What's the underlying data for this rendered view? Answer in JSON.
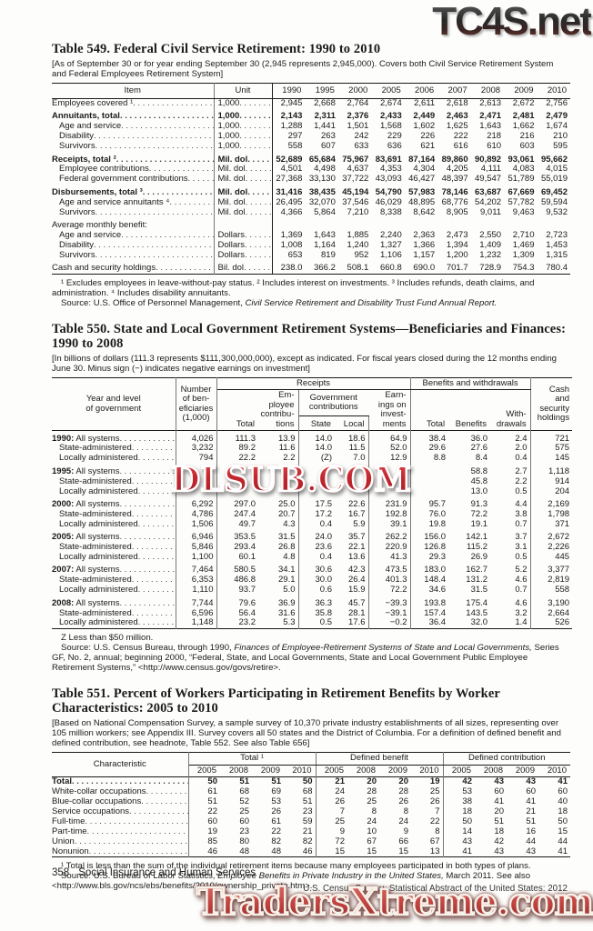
{
  "watermarks": {
    "top": "TC4S.net",
    "middle": "DLSUB.COM",
    "bottom": "TradersXtreme.com",
    "red": "#c3272e"
  },
  "table549": {
    "title": "Table 549. Federal Civil Service Retirement: 1990 to 2010",
    "note": "[As of September 30 or for year ending September 30 (2,945 represents 2,945,000). Covers both Civil Service Retirement System and Federal Employees Retirement System]",
    "header": {
      "item": "Item",
      "unit": "Unit"
    },
    "years": [
      "1990",
      "1995",
      "2000",
      "2005",
      "2006",
      "2007",
      "2008",
      "2009",
      "2010"
    ],
    "rows": [
      {
        "label": "Employees covered ¹",
        "unit": "1,000",
        "values": [
          "2,945",
          "2,668",
          "2,764",
          "2,674",
          "2,611",
          "2,618",
          "2,613",
          "2,672",
          "2,756"
        ]
      },
      {
        "label": "Annuitants, total",
        "unit": "1,000",
        "bold": true,
        "gap": true,
        "values": [
          "2,143",
          "2,311",
          "2,376",
          "2,433",
          "2,449",
          "2,463",
          "2,471",
          "2,481",
          "2,479"
        ]
      },
      {
        "label": "Age and service",
        "unit": "1,000",
        "indent": 1,
        "values": [
          "1,288",
          "1,441",
          "1,501",
          "1,568",
          "1,602",
          "1,625",
          "1,643",
          "1,662",
          "1,674"
        ]
      },
      {
        "label": "Disability",
        "unit": "1,000",
        "indent": 1,
        "values": [
          "297",
          "263",
          "242",
          "229",
          "226",
          "222",
          "218",
          "216",
          "210"
        ]
      },
      {
        "label": "Survivors",
        "unit": "1,000",
        "indent": 1,
        "values": [
          "558",
          "607",
          "633",
          "636",
          "621",
          "616",
          "610",
          "603",
          "595"
        ]
      },
      {
        "label": "Receipts, total ²",
        "unit": "Mil. dol",
        "bold": true,
        "gap": true,
        "values": [
          "52,689",
          "65,684",
          "75,967",
          "83,691",
          "87,164",
          "89,860",
          "90,892",
          "93,061",
          "95,662"
        ]
      },
      {
        "label": "Employee contributions",
        "unit": "Mil. dol",
        "indent": 1,
        "values": [
          "4,501",
          "4,498",
          "4,637",
          "4,353",
          "4,304",
          "4,205",
          "4,111",
          "4,083",
          "4,015"
        ]
      },
      {
        "label": "Federal government contributions",
        "unit": "Mil. dol",
        "indent": 1,
        "values": [
          "27,368",
          "33,130",
          "37,722",
          "43,093",
          "46,427",
          "48,397",
          "49,547",
          "51,789",
          "55,019"
        ]
      },
      {
        "label": "Disbursements, total ³",
        "unit": "Mil. dol",
        "bold": true,
        "gap": true,
        "values": [
          "31,416",
          "38,435",
          "45,194",
          "54,790",
          "57,983",
          "78,146",
          "63,687",
          "67,669",
          "69,452"
        ]
      },
      {
        "label": "Age and service annuitants ⁴",
        "unit": "Mil. dol",
        "indent": 1,
        "values": [
          "26,495",
          "32,070",
          "37,546",
          "46,029",
          "48,895",
          "68,776",
          "54,202",
          "57,782",
          "59,594"
        ]
      },
      {
        "label": "Survivors",
        "unit": "Mil. dol",
        "indent": 1,
        "values": [
          "4,366",
          "5,864",
          "7,210",
          "8,338",
          "8,642",
          "8,905",
          "9,011",
          "9,463",
          "9,532"
        ]
      },
      {
        "label": "Average monthly benefit:",
        "subheader": true,
        "gap": true,
        "values": [
          "",
          "",
          "",
          "",
          "",
          "",
          "",
          "",
          ""
        ]
      },
      {
        "label": "Age and service",
        "unit": "Dollars",
        "indent": 1,
        "values": [
          "1,369",
          "1,643",
          "1,885",
          "2,240",
          "2,363",
          "2,473",
          "2,550",
          "2,710",
          "2,723"
        ]
      },
      {
        "label": "Disability",
        "unit": "Dollars",
        "indent": 1,
        "values": [
          "1,008",
          "1,164",
          "1,240",
          "1,327",
          "1,366",
          "1,394",
          "1,409",
          "1,469",
          "1,453"
        ]
      },
      {
        "label": "Survivors",
        "unit": "Dollars",
        "indent": 1,
        "values": [
          "653",
          "819",
          "952",
          "1,106",
          "1,157",
          "1,200",
          "1,232",
          "1,309",
          "1,315"
        ]
      },
      {
        "label": "Cash and security holdings",
        "unit": "Bil. dol",
        "gap": true,
        "values": [
          "238.0",
          "366.2",
          "508.1",
          "660.8",
          "690.0",
          "701.7",
          "728.9",
          "754.3",
          "780.4"
        ]
      }
    ],
    "footnote": "¹ Excludes employees in leave-without-pay status. ² Includes interest on investments. ³ Includes refunds, death claims, and administration. ⁴ Includes disability annuitants.",
    "source_segments": [
      {
        "text": "Source: U.S. Office of Personnel Management, "
      },
      {
        "text": "Civil Service Retirement and Disability Trust Fund Annual Report.",
        "italic": true
      }
    ]
  },
  "table550": {
    "title": "Table 550. State and Local Government Retirement Systems—Beneficiaries and Finances: 1990 to 2008",
    "note": "[In billions of dollars (111.3 represents $111,300,000,000), except as indicated. For fiscal years closed during the 12 months ending June 30. Minus sign (−) indicates negative earnings on investment]",
    "header": {
      "year_level": "Year and level\nof government",
      "number": "Number\nof ben-\neficiaries\n(1,000)",
      "receipts": "Receipts",
      "benefits_group": "Benefits and withdrawals",
      "cash": "Cash\nand\nsecurity\nholdings",
      "r_total": "Total",
      "employee": "Em-\nployee\ncontribu-\ntions",
      "govt": "Government\ncontributions",
      "state": "State",
      "local": "Local",
      "earnings": "Earn-\nings on\ninvest-\nments",
      "b_total": "Total",
      "benefits": "Benefits",
      "withdrawals": "With-\ndrawals"
    },
    "rows": [
      {
        "prefix": "1990:",
        "label": " All systems",
        "gap": true,
        "values": [
          "4,026",
          "111.3",
          "13.9",
          "14.0",
          "18.6",
          "64.9",
          "38.4",
          "36.0",
          "2.4",
          "721"
        ]
      },
      {
        "label": "State-administered",
        "indent": 1,
        "values": [
          "3,232",
          "89.2",
          "11.6",
          "14.0",
          "11.5",
          "52.0",
          "29.6",
          "27.6",
          "2.0",
          "575"
        ]
      },
      {
        "label": "Locally administered",
        "indent": 1,
        "values": [
          "794",
          "22.2",
          "2.2",
          "(Z)",
          "7.0",
          "12.9",
          "8.8",
          "8.4",
          "0.4",
          "145"
        ]
      },
      {
        "prefix": "1995:",
        "label": " All systems",
        "gap": true,
        "covered": true,
        "values": [
          "",
          "",
          "",
          "",
          "",
          "",
          "",
          "58.8",
          "2.7",
          "1,118"
        ]
      },
      {
        "label": "State-administered",
        "indent": 1,
        "covered": true,
        "values": [
          "",
          "",
          "",
          "",
          "",
          "",
          "",
          "45.8",
          "2.2",
          "914"
        ]
      },
      {
        "label": "Locally administered",
        "indent": 1,
        "covered": true,
        "values": [
          "",
          "",
          "",
          "",
          "",
          "",
          "",
          "13.0",
          "0.5",
          "204"
        ]
      },
      {
        "prefix": "2000:",
        "label": " All systems",
        "gap": true,
        "values": [
          "6,292",
          "297.0",
          "25.0",
          "17.5",
          "22.6",
          "231.9",
          "95.7",
          "91.3",
          "4.4",
          "2,169"
        ]
      },
      {
        "label": "State-administered",
        "indent": 1,
        "values": [
          "4,786",
          "247.4",
          "20.7",
          "17.2",
          "16.7",
          "192.8",
          "76.0",
          "72.2",
          "3.8",
          "1,798"
        ]
      },
      {
        "label": "Locally administered",
        "indent": 1,
        "values": [
          "1,506",
          "49.7",
          "4.3",
          "0.4",
          "5.9",
          "39.1",
          "19.8",
          "19.1",
          "0.7",
          "371"
        ]
      },
      {
        "prefix": "2005:",
        "label": " All systems",
        "gap": true,
        "values": [
          "6,946",
          "353.5",
          "31.5",
          "24.0",
          "35.7",
          "262.2",
          "156.0",
          "142.1",
          "3.7",
          "2,672"
        ]
      },
      {
        "label": "State-administered",
        "indent": 1,
        "values": [
          "5,846",
          "293.4",
          "26.8",
          "23.6",
          "22.1",
          "220.9",
          "126.8",
          "115.2",
          "3.1",
          "2,226"
        ]
      },
      {
        "label": "Locally administered",
        "indent": 1,
        "values": [
          "1,100",
          "60.1",
          "4.8",
          "0.4",
          "13.6",
          "41.3",
          "29.3",
          "26.9",
          "0.5",
          "445"
        ]
      },
      {
        "prefix": "2007:",
        "label": " All systems",
        "gap": true,
        "values": [
          "7,464",
          "580.5",
          "34.1",
          "30.6",
          "42.3",
          "473.5",
          "183.0",
          "162.7",
          "5.2",
          "3,377"
        ]
      },
      {
        "label": "State-administered",
        "indent": 1,
        "values": [
          "6,353",
          "486.8",
          "29.1",
          "30.0",
          "26.4",
          "401.3",
          "148.4",
          "131.2",
          "4.6",
          "2,819"
        ]
      },
      {
        "label": "Locally administered",
        "indent": 1,
        "values": [
          "1,110",
          "93.7",
          "5.0",
          "0.6",
          "15.9",
          "72.2",
          "34.6",
          "31.5",
          "0.7",
          "558"
        ]
      },
      {
        "prefix": "2008:",
        "label": " All systems",
        "gap": true,
        "values": [
          "7,744",
          "79.6",
          "36.9",
          "36.3",
          "45.7",
          "−39.3",
          "193.8",
          "175.4",
          "4.6",
          "3,190"
        ]
      },
      {
        "label": "State-administered",
        "indent": 1,
        "values": [
          "6,596",
          "56.4",
          "31.6",
          "35.8",
          "28.1",
          "−39.1",
          "157.4",
          "143.5",
          "3.2",
          "2,664"
        ]
      },
      {
        "label": "Locally administered",
        "indent": 1,
        "values": [
          "1,148",
          "23.2",
          "5.3",
          "0.5",
          "17.6",
          "−0.2",
          "36.4",
          "32.0",
          "1.4",
          "526"
        ]
      }
    ],
    "z_note": "Z Less than $50 million.",
    "source_segments": [
      {
        "text": "Source: U.S. Census Bureau, through 1990, "
      },
      {
        "text": "Finances of Employee-Retirement Systems of State and Local Governments,",
        "italic": true
      },
      {
        "text": " Series GF, No. 2, annual; beginning 2000, “Federal, State, and Local Governments, State and Local Government Public Employee Retirement Systems,” <http://www.census.gov/govs/retire>."
      }
    ]
  },
  "table551": {
    "title": "Table 551. Percent of Workers Participating in Retirement Benefits by Worker Characteristics: 2005 to 2010",
    "note": "[Based on National Compensation Survey, a sample survey of 10,370 private industry establishments of all sizes, representing over 105 million workers; see Appendix III. Survey covers all 50 states and the District of Columbia. For a definition of defined benefit and defined contribution, see headnote, Table 552. See also Table 656]",
    "header": {
      "characteristic": "Characteristic",
      "group_total": "Total ¹",
      "group_db": "Defined benefit",
      "group_dc": "Defined contribution"
    },
    "years": [
      "2005",
      "2008",
      "2009",
      "2010"
    ],
    "rows": [
      {
        "label": "Total",
        "bold": true,
        "values": [
          "50",
          "51",
          "51",
          "50",
          "21",
          "20",
          "20",
          "19",
          "42",
          "43",
          "43",
          "41"
        ]
      },
      {
        "label": "White-collar occupations",
        "values": [
          "61",
          "68",
          "69",
          "68",
          "24",
          "28",
          "28",
          "25",
          "53",
          "60",
          "60",
          "60"
        ]
      },
      {
        "label": "Blue-collar occupations",
        "values": [
          "51",
          "52",
          "53",
          "51",
          "26",
          "25",
          "26",
          "26",
          "38",
          "41",
          "41",
          "40"
        ]
      },
      {
        "label": "Service occupations",
        "values": [
          "22",
          "25",
          "26",
          "23",
          "7",
          "8",
          "8",
          "7",
          "18",
          "20",
          "21",
          "18"
        ]
      },
      {
        "label": "Full-time",
        "values": [
          "60",
          "60",
          "61",
          "59",
          "25",
          "24",
          "24",
          "22",
          "50",
          "51",
          "51",
          "50"
        ]
      },
      {
        "label": "Part-time",
        "values": [
          "19",
          "23",
          "22",
          "21",
          "9",
          "10",
          "9",
          "8",
          "14",
          "18",
          "16",
          "15"
        ]
      },
      {
        "label": "Union",
        "values": [
          "85",
          "80",
          "82",
          "82",
          "72",
          "67",
          "66",
          "67",
          "43",
          "42",
          "44",
          "44"
        ]
      },
      {
        "label": "Nonunion",
        "values": [
          "46",
          "48",
          "48",
          "46",
          "15",
          "15",
          "15",
          "13",
          "41",
          "43",
          "43",
          "41"
        ]
      }
    ],
    "footnote": "¹ Total is less than the sum of the individual retirement items because many employees participated in both types of plans.",
    "source_segments": [
      {
        "text": "Source: U.S. Bureau of Labor Statistics, "
      },
      {
        "text": "Employee Benefits in Private Industry in the United States,",
        "italic": true
      },
      {
        "text": " March 2011. See also <http://www.bls.gov/ncs/ebs/benefits/2010/ownership_private.htm>."
      }
    ]
  },
  "footer": {
    "page": "358",
    "section": "Social Insurance and Human Services",
    "source": "U.S. Census Bureau, Statistical Abstract of the United States: 2012"
  }
}
